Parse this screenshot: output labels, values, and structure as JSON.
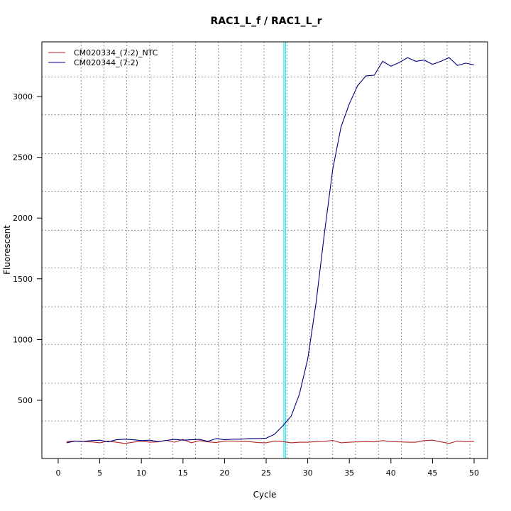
{
  "chart_data": {
    "type": "line",
    "title": "RAC1_L_f / RAC1_L_r",
    "xlabel": "Cycle",
    "ylabel": "Fluorescent",
    "xlim": [
      0,
      52
    ],
    "ylim": [
      90,
      3400
    ],
    "x_ticks": [
      0,
      5,
      10,
      15,
      20,
      25,
      30,
      35,
      40,
      45,
      50
    ],
    "y_ticks": [
      500,
      1000,
      1500,
      2000,
      2500,
      3000
    ],
    "grid": true,
    "grid_x_every": 2.75,
    "grid_y": [
      330,
      640,
      960,
      1270,
      1590,
      1900,
      2220,
      2530,
      2850,
      3160
    ],
    "legend_position": "top-left",
    "threshold_line": {
      "x": 27.3,
      "color": "#00e5ee"
    },
    "series": [
      {
        "name": "CM020334_(7:2)_NTC",
        "color": "#b22222",
        "x": [
          1,
          2,
          3,
          4,
          5,
          6,
          7,
          8,
          9,
          10,
          11,
          12,
          13,
          14,
          15,
          16,
          17,
          18,
          19,
          20,
          21,
          22,
          23,
          24,
          25,
          26,
          27,
          28,
          29,
          30,
          31,
          32,
          33,
          34,
          35,
          36,
          37,
          38,
          39,
          40,
          41,
          42,
          43,
          44,
          45,
          46,
          47,
          48,
          49,
          50
        ],
        "values": [
          160,
          165,
          162,
          158,
          150,
          165,
          155,
          145,
          155,
          165,
          155,
          158,
          170,
          155,
          178,
          150,
          168,
          158,
          152,
          165,
          165,
          162,
          160,
          152,
          150,
          165,
          160,
          150,
          155,
          155,
          160,
          162,
          170,
          150,
          155,
          158,
          160,
          158,
          168,
          160,
          158,
          155,
          155,
          168,
          172,
          158,
          145,
          165,
          160,
          162
        ]
      },
      {
        "name": "CM020344_(7:2)",
        "color": "#000080",
        "x": [
          1,
          2,
          3,
          4,
          5,
          6,
          7,
          8,
          9,
          10,
          11,
          12,
          13,
          14,
          15,
          16,
          17,
          18,
          19,
          20,
          21,
          22,
          23,
          24,
          25,
          26,
          27,
          28,
          29,
          30,
          31,
          32,
          33,
          34,
          35,
          36,
          37,
          38,
          39,
          40,
          41,
          42,
          43,
          44,
          45,
          46,
          47,
          48,
          49,
          50
        ],
        "values": [
          150,
          165,
          162,
          168,
          172,
          158,
          175,
          180,
          175,
          168,
          172,
          160,
          170,
          178,
          172,
          175,
          178,
          162,
          185,
          175,
          180,
          180,
          185,
          185,
          188,
          220,
          290,
          370,
          550,
          840,
          1300,
          1870,
          2400,
          2750,
          2940,
          3090,
          3170,
          3175,
          3290,
          3250,
          3280,
          3320,
          3290,
          3300,
          3265,
          3290,
          3320,
          3255,
          3275,
          3260
        ]
      }
    ]
  }
}
